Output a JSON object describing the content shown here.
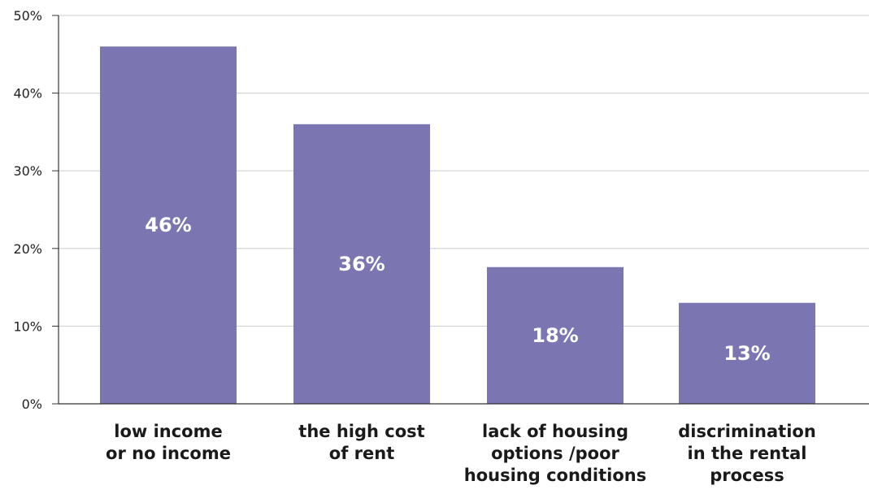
{
  "chart_data": {
    "type": "bar",
    "categories": [
      [
        "low income",
        "or no income"
      ],
      [
        "the high cost",
        "of rent"
      ],
      [
        "lack of housing",
        "options /poor",
        "housing conditions"
      ],
      [
        "discrimination",
        "in the rental",
        "process"
      ]
    ],
    "values": [
      46,
      36,
      17.6,
      13
    ],
    "data_labels": [
      "46%",
      "36%",
      "18%",
      "13%"
    ],
    "ylim": [
      0,
      50
    ],
    "yticks": [
      0,
      10,
      20,
      30,
      40,
      50
    ],
    "ytick_labels": [
      "0%",
      "10%",
      "20%",
      "30%",
      "40%",
      "50%"
    ],
    "grid": true,
    "bar_color": "#7b76b1",
    "grid_color": "#cccccc",
    "axis_color": "#333333"
  }
}
